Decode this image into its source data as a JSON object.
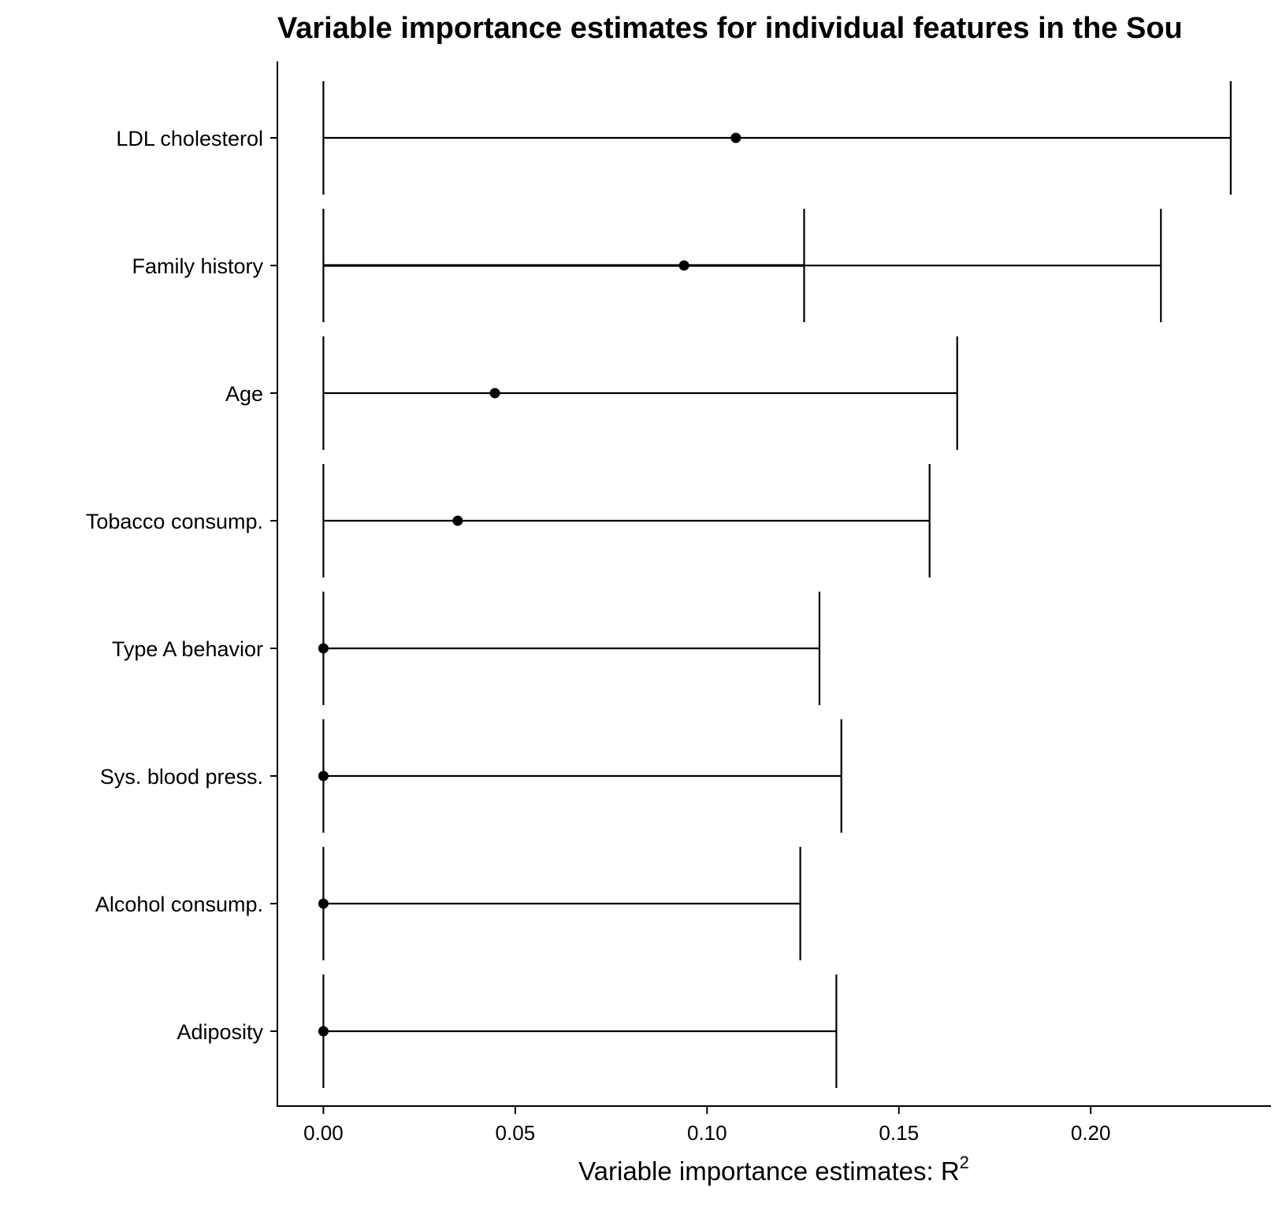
{
  "chart_data": {
    "type": "errorbar-dot",
    "title": "Variable importance estimates for individual features in the Sou",
    "xlabel": "Variable importance estimates: R",
    "xlabel_superscript": "2",
    "ylabel": "",
    "xlim": [
      -0.012,
      0.247
    ],
    "x_ticks": [
      "0.00",
      "0.05",
      "0.10",
      "0.15",
      "0.20"
    ],
    "x_tick_values": [
      0.0,
      0.05,
      0.1,
      0.15,
      0.2
    ],
    "grid": false,
    "legend": "none",
    "rows": [
      {
        "label": "LDL cholesterol",
        "estimate": 0.1075,
        "ci_low": 0.0,
        "ci_high": 0.2365
      },
      {
        "label": "Family history",
        "estimate": 0.094,
        "ci_low": 0.0,
        "ci_high": 0.2183,
        "extra_bar": 0.1253
      },
      {
        "label": "Age",
        "estimate": 0.0447,
        "ci_low": 0.0,
        "ci_high": 0.1652
      },
      {
        "label": "Tobacco consump.",
        "estimate": 0.035,
        "ci_low": 0.0,
        "ci_high": 0.158
      },
      {
        "label": "Type A behavior",
        "estimate": 0.0,
        "ci_low": 0.0,
        "ci_high": 0.1293
      },
      {
        "label": "Sys. blood press.",
        "estimate": 0.0,
        "ci_low": 0.0,
        "ci_high": 0.135
      },
      {
        "label": "Alcohol consump.",
        "estimate": 0.0,
        "ci_low": 0.0,
        "ci_high": 0.1243
      },
      {
        "label": "Adiposity",
        "estimate": 0.0,
        "ci_low": 0.0,
        "ci_high": 0.1337
      }
    ],
    "colors": {
      "ink": "#000000",
      "background": "#ffffff"
    }
  }
}
